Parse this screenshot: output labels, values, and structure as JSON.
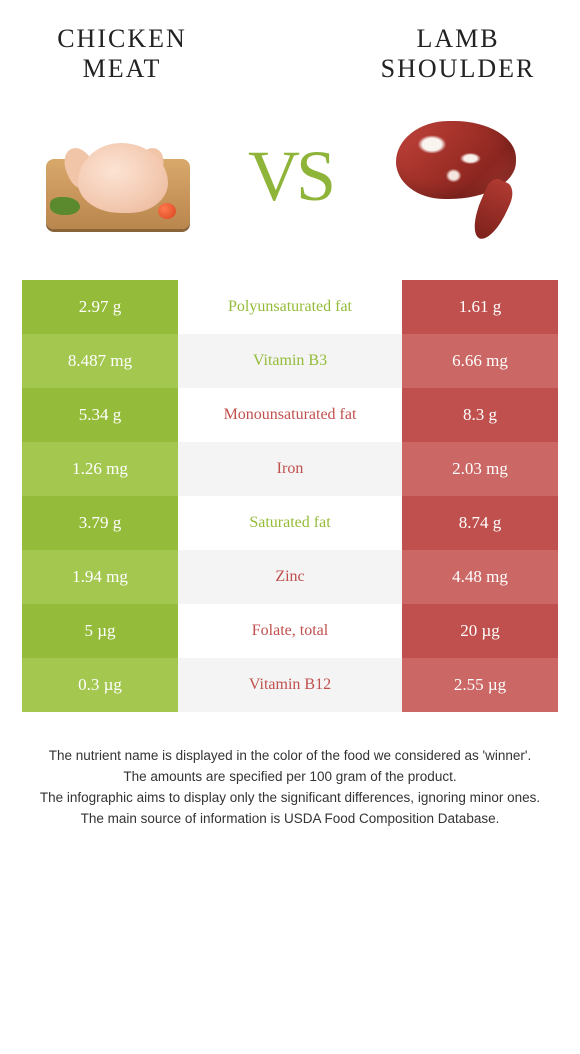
{
  "header": {
    "left_title_l1": "CHICKEN",
    "left_title_l2": "MEAT",
    "right_title_l1": "LAMB",
    "right_title_l2": "SHOULDER",
    "vs": "VS"
  },
  "colors": {
    "left_main": "#94bc3a",
    "left_alt": "#a3c74f",
    "right_main": "#c0504d",
    "right_alt": "#cb6764",
    "mid_text_left": "#94bc3a",
    "mid_text_right": "#c0504d"
  },
  "rows": [
    {
      "left": "2.97 g",
      "label": "Polyunsaturated fat",
      "right": "1.61 g",
      "winner": "left"
    },
    {
      "left": "8.487 mg",
      "label": "Vitamin B3",
      "right": "6.66 mg",
      "winner": "left"
    },
    {
      "left": "5.34 g",
      "label": "Monounsaturated fat",
      "right": "8.3 g",
      "winner": "right"
    },
    {
      "left": "1.26 mg",
      "label": "Iron",
      "right": "2.03 mg",
      "winner": "right"
    },
    {
      "left": "3.79 g",
      "label": "Saturated fat",
      "right": "8.74 g",
      "winner": "left"
    },
    {
      "left": "1.94 mg",
      "label": "Zinc",
      "right": "4.48 mg",
      "winner": "right"
    },
    {
      "left": "5 µg",
      "label": "Folate, total",
      "right": "20 µg",
      "winner": "right"
    },
    {
      "left": "0.3 µg",
      "label": "Vitamin B12",
      "right": "2.55 µg",
      "winner": "right"
    }
  ],
  "footer": {
    "l1": "The nutrient name is displayed in the color of the food we considered as 'winner'.",
    "l2": "The amounts are specified per 100 gram of the product.",
    "l3": "The infographic aims to display only the significant differences, ignoring minor ones.",
    "l4": "The main source of information is USDA Food Composition Database."
  }
}
